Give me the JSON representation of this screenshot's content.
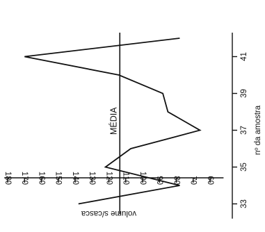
{
  "chart_data": {
    "type": "line",
    "orientation": "rotated",
    "x_axis": {
      "label": "nº da amostra",
      "range": [
        32.2,
        42.3
      ],
      "ticks": [
        33,
        35,
        37,
        39,
        41
      ]
    },
    "y_axis": {
      "label": "volume s/casca",
      "range": [
        52,
        182
      ],
      "ticks": [
        180,
        170,
        160,
        150,
        140,
        130,
        120,
        110,
        100,
        90,
        80,
        70,
        60
      ]
    },
    "series": [
      {
        "x": [
          33,
          34,
          35,
          36,
          37,
          38,
          39,
          40,
          41,
          42
        ],
        "y": [
          138,
          78,
          122,
          107,
          66,
          85,
          88,
          114,
          170,
          78
        ]
      }
    ],
    "reference_line": {
      "label": "MÉDIA",
      "value": 113.5
    },
    "grid": false,
    "legend": "none",
    "color": "#111111"
  }
}
